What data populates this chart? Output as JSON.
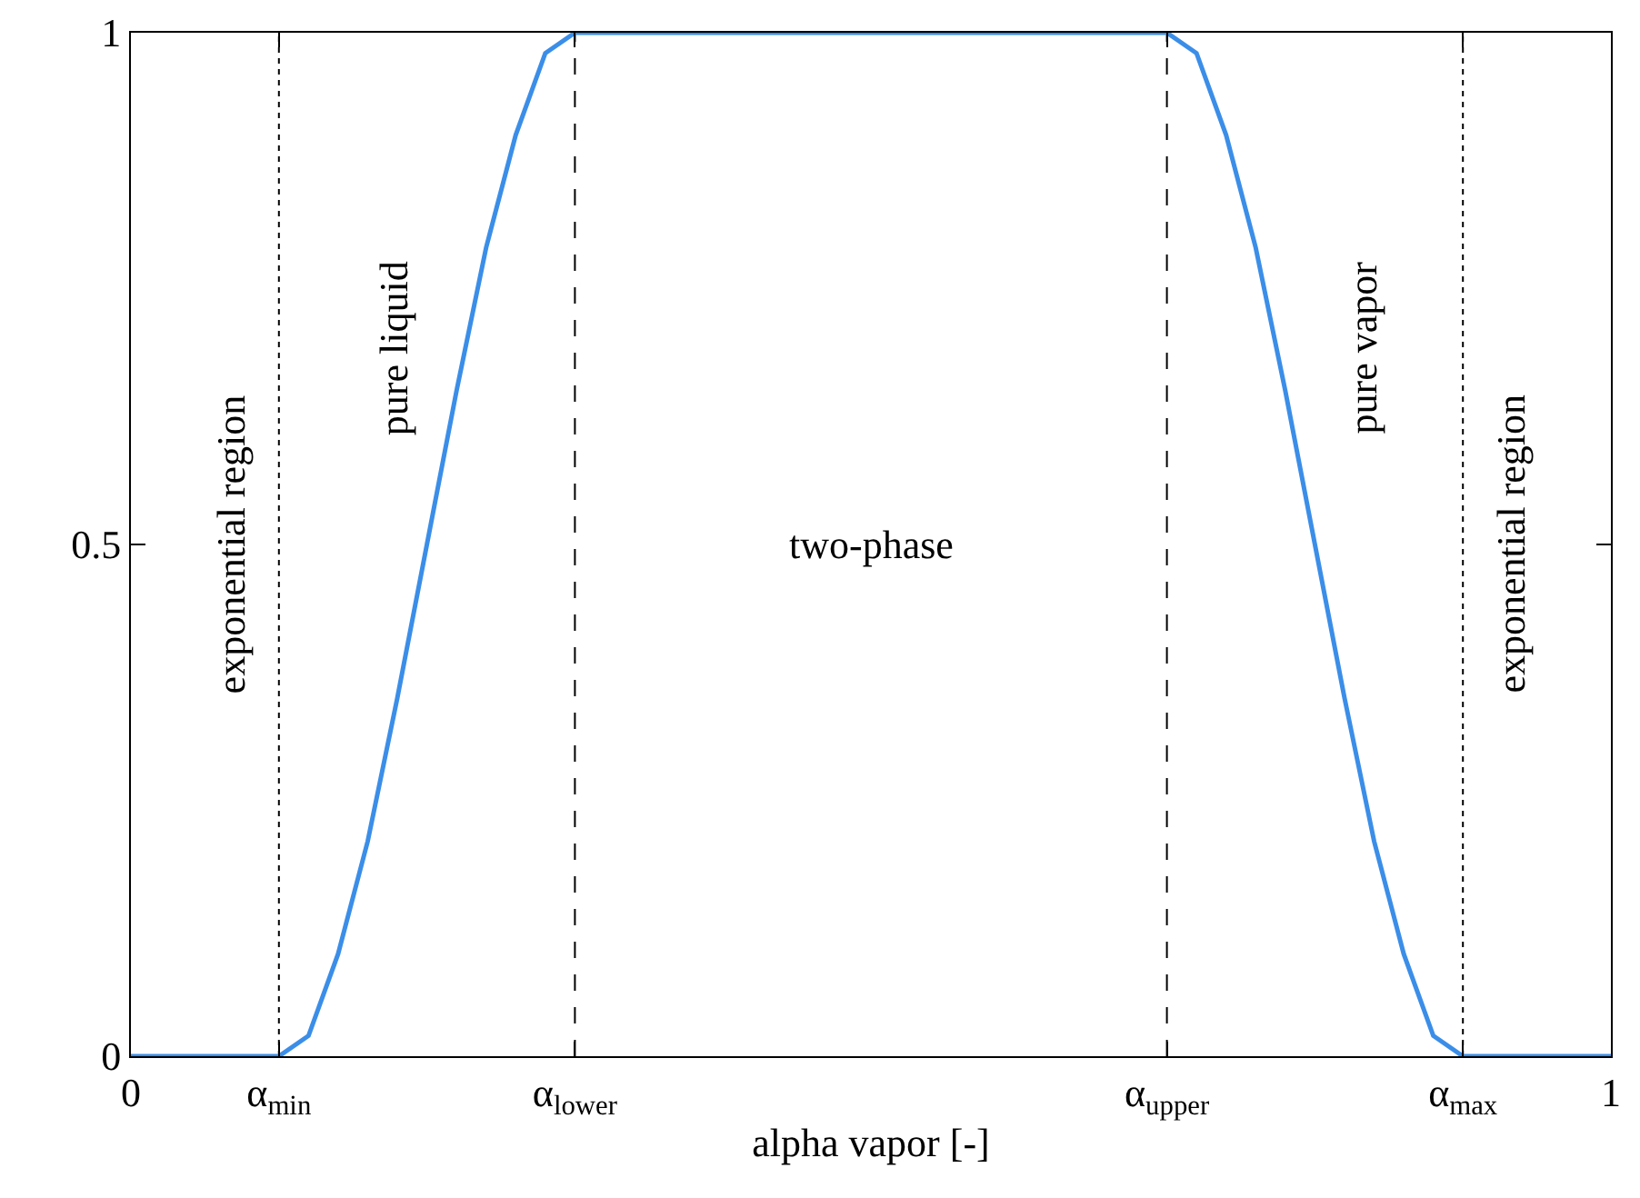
{
  "chart_data": {
    "type": "line",
    "xlabel": "alpha vapor [-]",
    "x": [
      0,
      0.1,
      0.12,
      0.14,
      0.16,
      0.18,
      0.2,
      0.22,
      0.24,
      0.26,
      0.28,
      0.3,
      0.7,
      0.72,
      0.74,
      0.76,
      0.78,
      0.8,
      0.82,
      0.84,
      0.86,
      0.88,
      0.9,
      1
    ],
    "series": [
      {
        "color": "#3b8ee8",
        "values": [
          0,
          0,
          0.02,
          0.1,
          0.21,
          0.35,
          0.5,
          0.65,
          0.79,
          0.9,
          0.98,
          1,
          1,
          0.98,
          0.9,
          0.79,
          0.65,
          0.5,
          0.35,
          0.21,
          0.1,
          0.02,
          0,
          0
        ]
      }
    ],
    "xlim": [
      0,
      1
    ],
    "ylim": [
      0,
      1
    ],
    "xticks": [
      0,
      {
        "value": 0.1,
        "label": "α$_{min}$"
      },
      {
        "value": 0.3,
        "label": "α$_{lower}$"
      },
      {
        "value": 0.7,
        "label": "α$_{upper}$"
      },
      {
        "value": 0.9,
        "label": "α$_{max}$"
      },
      1
    ],
    "yticks": [
      0,
      0.5,
      1
    ],
    "ref_lines": [
      {
        "axis": "x",
        "value": 0.1,
        "line_style": "dotted",
        "color": "#000000"
      },
      {
        "axis": "x",
        "value": 0.3,
        "line_style": "dashed",
        "color": "#000000"
      },
      {
        "axis": "x",
        "value": 0.7,
        "line_style": "dashed",
        "color": "#000000"
      },
      {
        "axis": "x",
        "value": 0.9,
        "line_style": "dotted",
        "color": "#000000"
      }
    ],
    "annotations": [
      "exponential region",
      "pure liquid",
      "two-phase",
      "pure vapor",
      "exponential region"
    ],
    "grid": false,
    "legend": false,
    "line_style": "solid",
    "marker": "none"
  }
}
